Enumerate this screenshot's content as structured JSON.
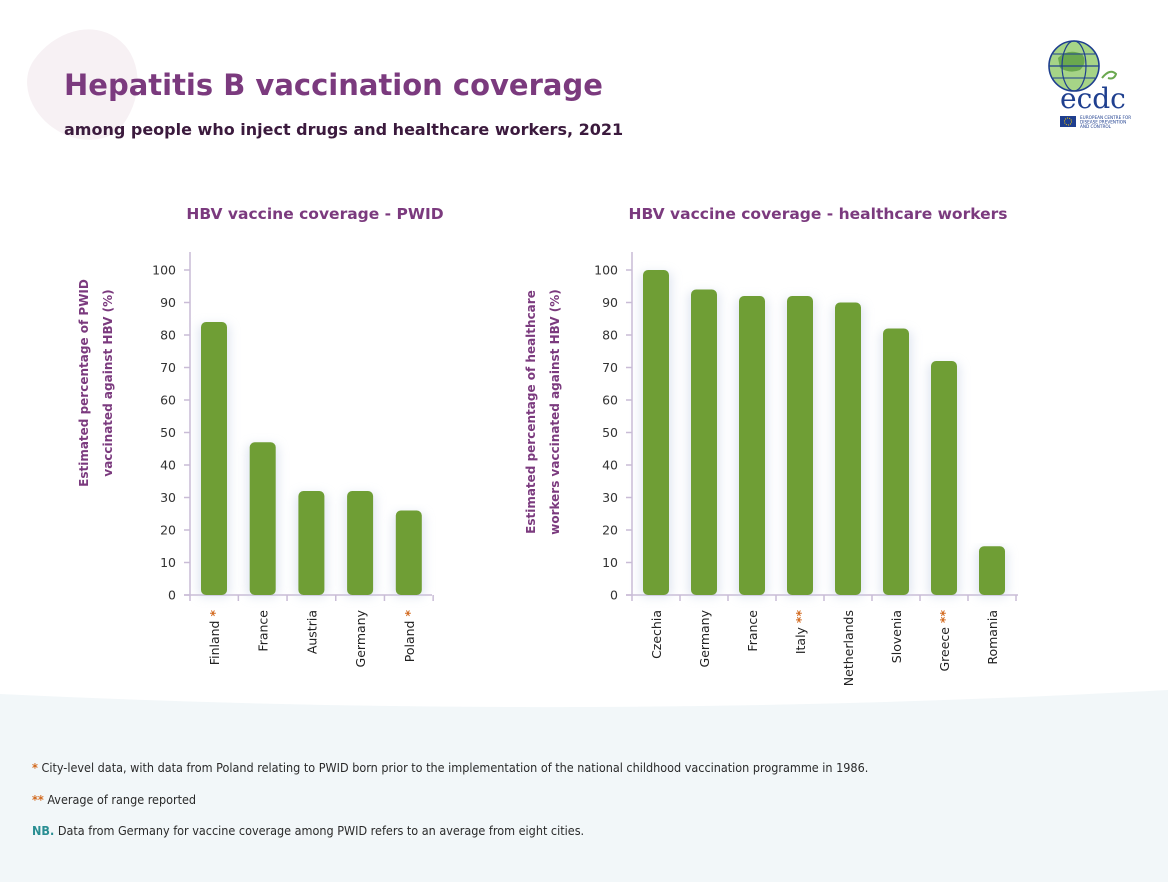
{
  "header": {
    "title": "Hepatitis B vaccination coverage",
    "subtitle": "among people who inject drugs and healthcare workers, 2021"
  },
  "logo": {
    "wordmark": "ecdc",
    "caption_lines": [
      "EUROPEAN CENTRE FOR",
      "DISEASE PREVENTION",
      "AND CONTROL"
    ]
  },
  "colors": {
    "title": "#7b3a7e",
    "bar": "#6f9e35",
    "axis": "#c9bcd6",
    "star": "#d2691e",
    "nb": "#2a8f93",
    "footer_bg": "#f2f7f9"
  },
  "chart_data": [
    {
      "type": "bar",
      "title": "HBV vaccine coverage - PWID",
      "ylabel_lines": [
        "Estimated percentage of PWID",
        "vaccinated against HBV (%)"
      ],
      "ylim": [
        0,
        100
      ],
      "yticks": [
        0,
        10,
        20,
        30,
        40,
        50,
        60,
        70,
        80,
        90,
        100
      ],
      "categories": [
        "Finland",
        "France",
        "Austria",
        "Germany",
        "Poland"
      ],
      "markers": [
        "*",
        "",
        "",
        "",
        "*"
      ],
      "values": [
        84,
        47,
        32,
        32,
        26
      ]
    },
    {
      "type": "bar",
      "title": "HBV vaccine coverage - healthcare workers",
      "ylabel_lines": [
        "Estimated percentage of healthcare",
        "workers vaccinated against HBV (%)"
      ],
      "ylim": [
        0,
        100
      ],
      "yticks": [
        0,
        10,
        20,
        30,
        40,
        50,
        60,
        70,
        80,
        90,
        100
      ],
      "categories": [
        "Czechia",
        "Germany",
        "France",
        "Italy",
        "Netherlands",
        "Slovenia",
        "Greece",
        "Romania"
      ],
      "markers": [
        "",
        "",
        "",
        "**",
        "",
        "",
        "**",
        ""
      ],
      "values": [
        100,
        94,
        92,
        92,
        90,
        82,
        72,
        15
      ]
    }
  ],
  "notes": [
    {
      "marker": "*",
      "text": "City-level data, with data from Poland relating to PWID born prior to the implementation of the national childhood vaccination programme in 1986."
    },
    {
      "marker": "**",
      "text": "Average of range reported"
    },
    {
      "marker": "NB.",
      "text": "Data from Germany for vaccine coverage among PWID refers to an average from eight cities."
    }
  ]
}
